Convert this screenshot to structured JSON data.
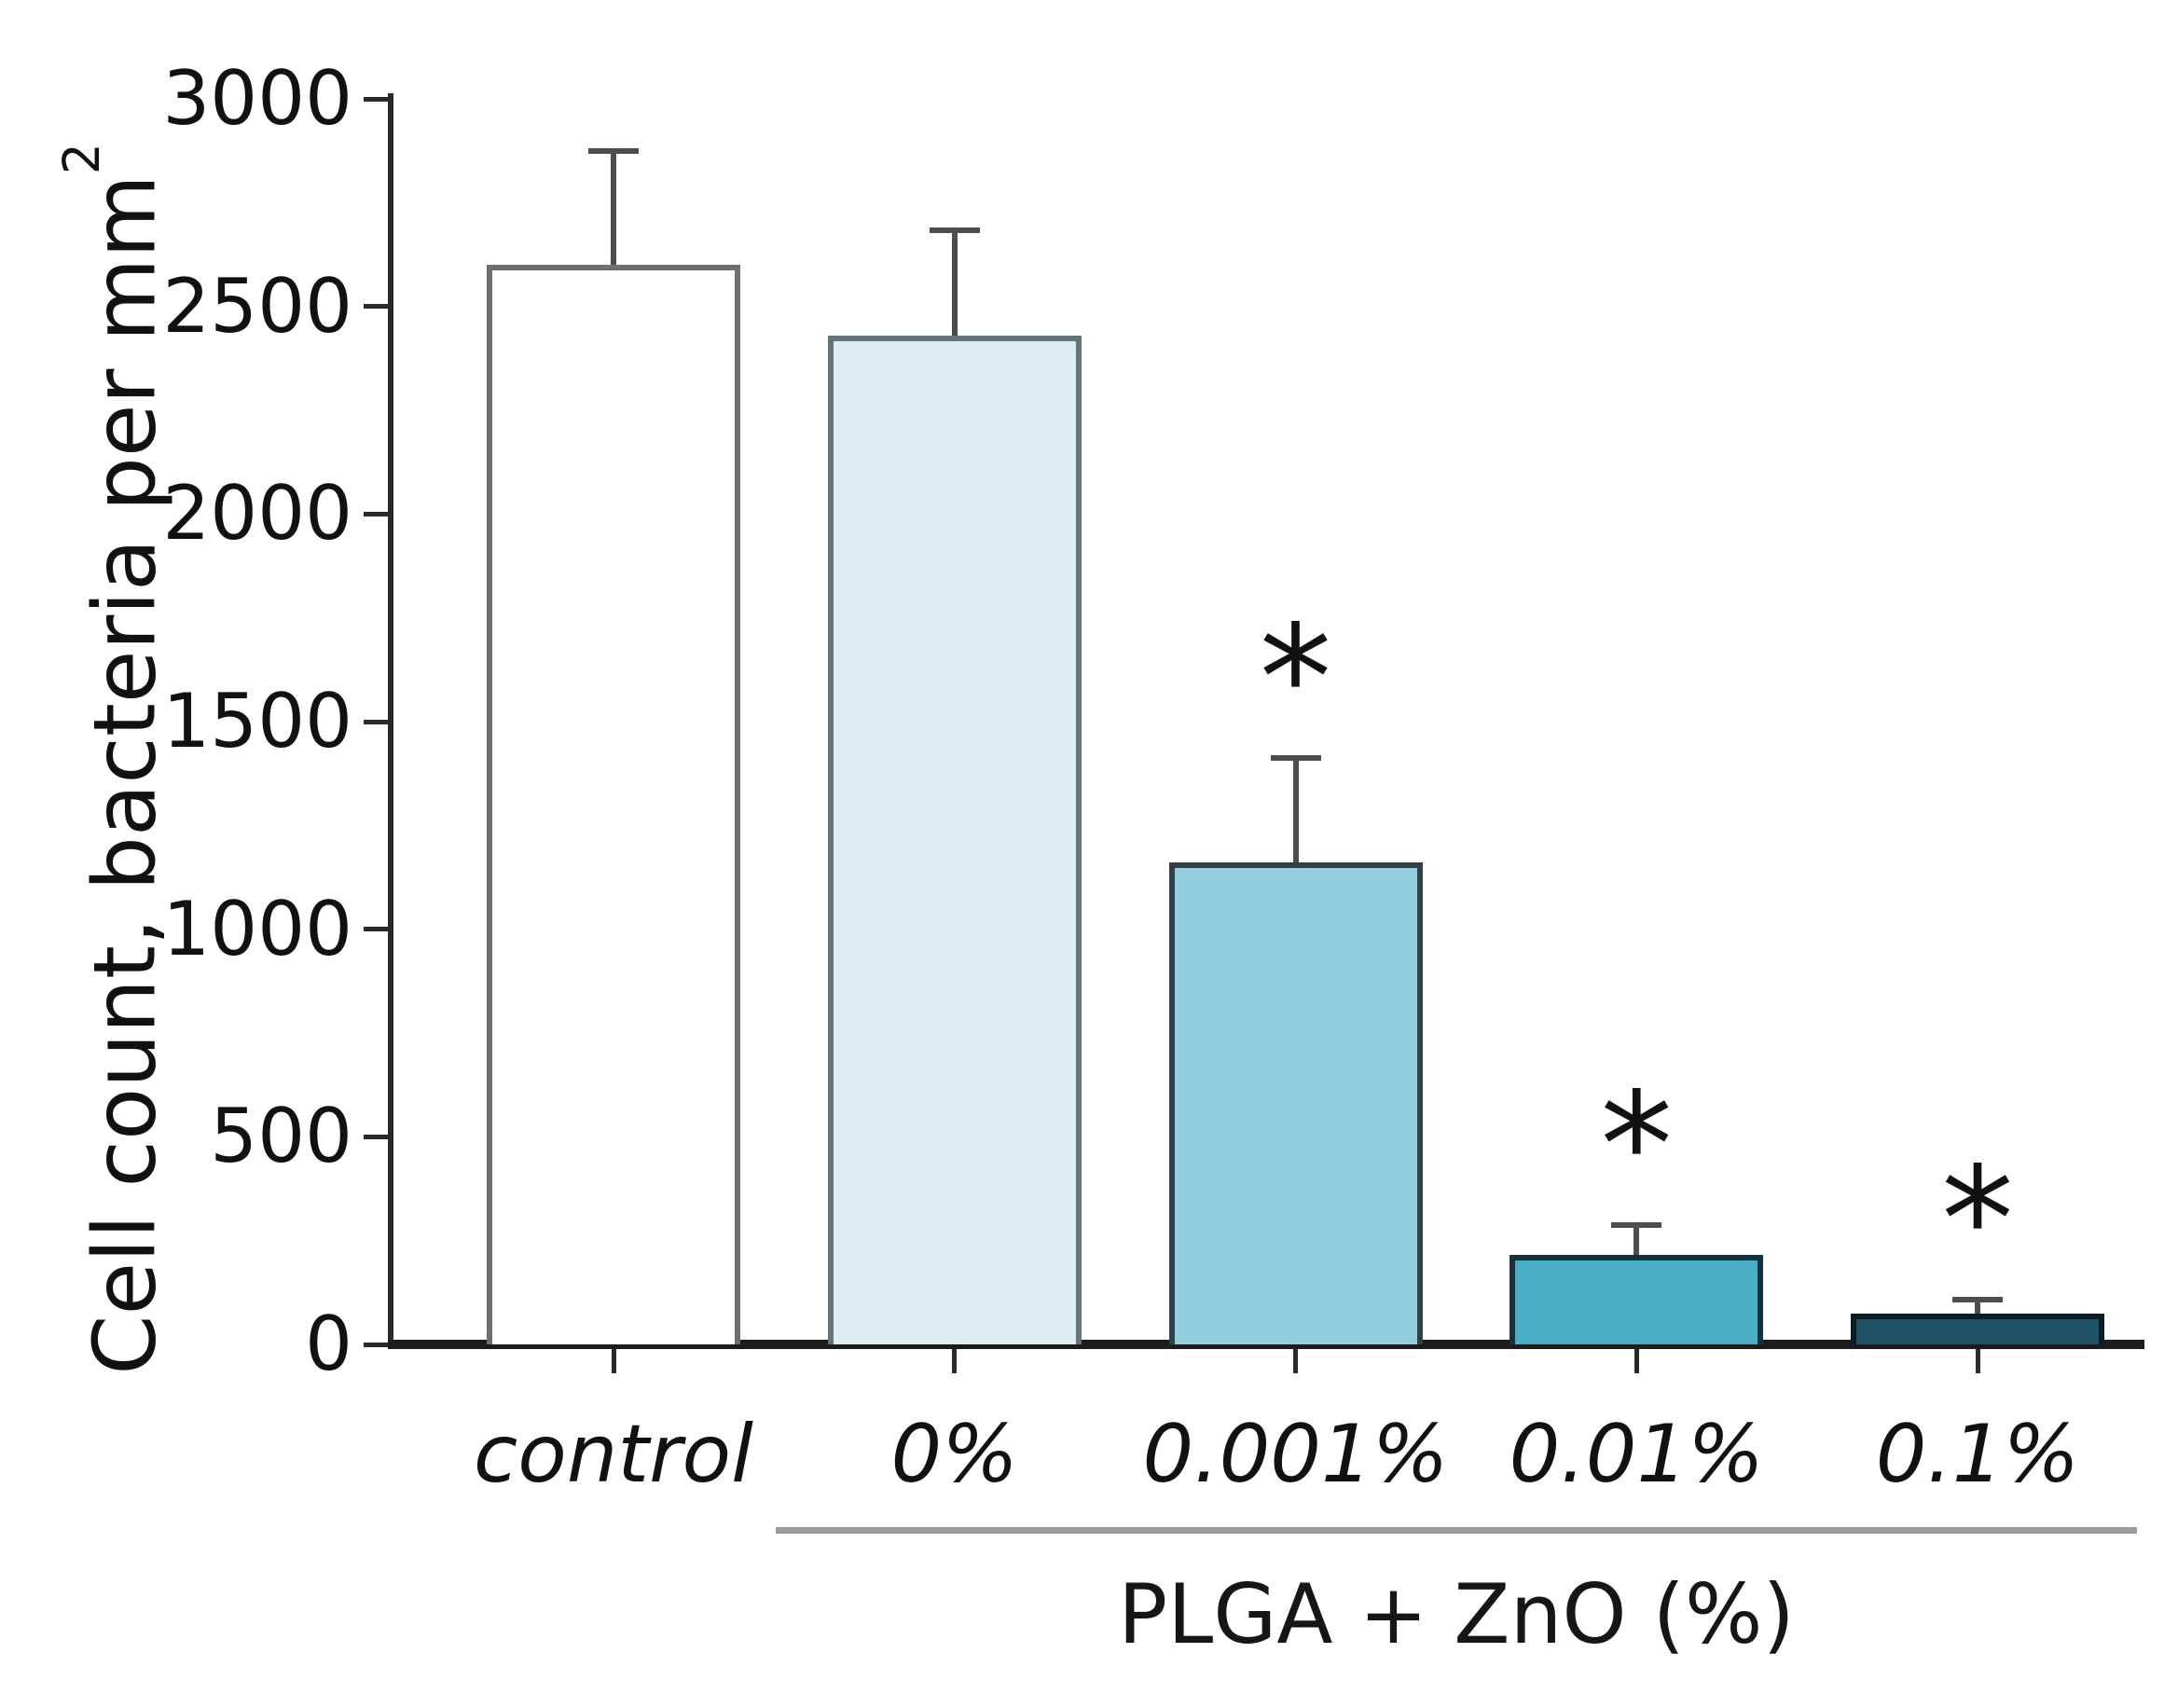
{
  "figure": {
    "y_axis_title_main": "Cell count, bacteria per mm",
    "y_axis_title_sup": "2",
    "x_axis_group_label": "PLGA + ZnO (%)",
    "significance_marker": "*"
  },
  "chart_data": {
    "type": "bar",
    "title": "",
    "xlabel": "PLGA + ZnO (%)",
    "ylabel": "Cell count, bacteria per mm²",
    "ylim": [
      0,
      3000
    ],
    "yticks": [
      0,
      500,
      1000,
      1500,
      2000,
      2500,
      3000
    ],
    "grid": false,
    "legend": false,
    "categories": [
      "control",
      "0%",
      "0.001%",
      "0.01%",
      "0.1%"
    ],
    "values": [
      2600,
      2430,
      1160,
      215,
      75
    ],
    "error_upper": [
      280,
      260,
      260,
      80,
      40
    ],
    "significant": [
      false,
      false,
      true,
      true,
      true
    ],
    "group_label": "PLGA + ZnO (%)",
    "group_members": [
      "0%",
      "0.001%",
      "0.01%",
      "0.1%"
    ],
    "bar_fill_colors": [
      "#ffffff",
      "#dcecf3",
      "#92cedd",
      "#47aec6",
      "#1e5264"
    ],
    "bar_border_colors": [
      "#6f6f6f",
      "#64747b",
      "#2e4048",
      "#16323c",
      "#0a1c26"
    ],
    "error_bar_color": "#4d4d4d",
    "axis_color": "#2a2a2a",
    "underline_color": "#9b9b9b",
    "text_color": "#111111"
  }
}
